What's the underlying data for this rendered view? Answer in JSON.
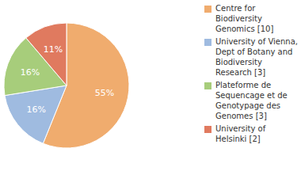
{
  "chart_data": {
    "type": "pie",
    "categories": [
      "Centre for Biodiversity Genomics [10]",
      "University of Vienna, Dept of Botany and Biodiversity Research [3]",
      "Plateforme de Sequencage et de Genotypage des Genomes [3]",
      "University of Helsinki [2]"
    ],
    "values": [
      55,
      16,
      16,
      11
    ],
    "value_labels": [
      "55%",
      "16%",
      "16%",
      "11%"
    ],
    "colors": [
      "#f0ac6e",
      "#9fbbe0",
      "#a7cd7b",
      "#e07a5f"
    ],
    "data_labels": true,
    "legend": "right"
  }
}
